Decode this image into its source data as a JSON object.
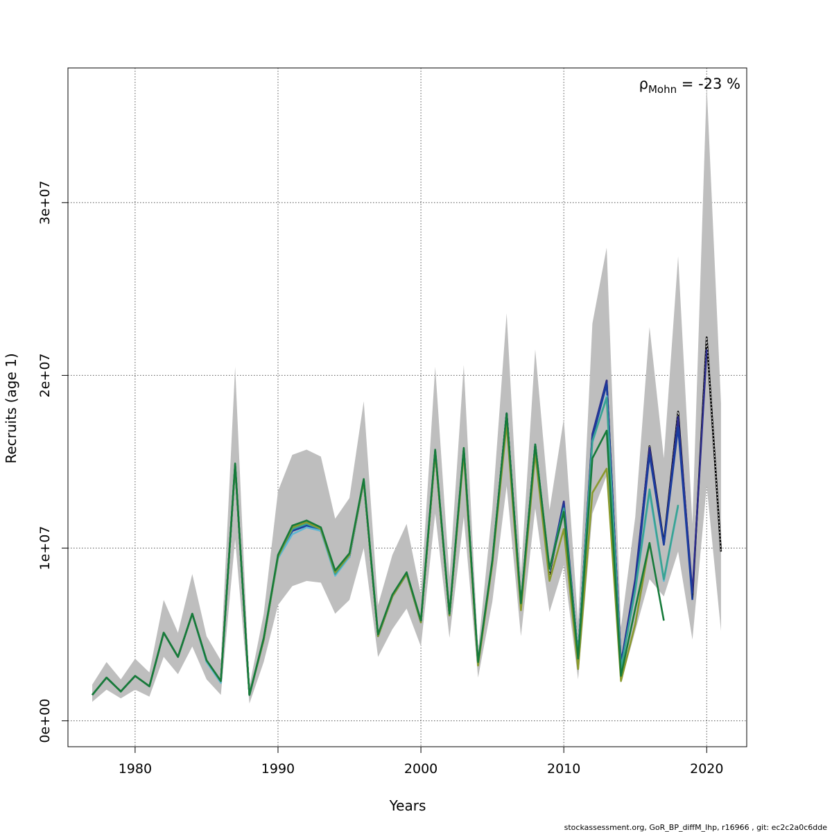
{
  "chart_data": {
    "type": "line",
    "title": "",
    "xlabel": "Years",
    "ylabel": "Recruits (age 1)",
    "xlim": [
      1975.3,
      2022.8
    ],
    "ylim": [
      -1500000,
      37800000
    ],
    "xticks": [
      1980,
      1990,
      2000,
      2010,
      2020
    ],
    "yticks": [
      0,
      10000000,
      20000000,
      30000000
    ],
    "xtick_labels": [
      "1980",
      "1990",
      "2000",
      "2010",
      "2020"
    ],
    "ytick_labels": [
      "0e+00",
      "1e+07",
      "2e+07",
      "3e+07"
    ],
    "grid": true,
    "annotation": {
      "rho": "ρ",
      "sub": "Mohn",
      "rest": " = -23 %"
    },
    "footer": "stockassessment.org, GoR_BP_diffM_lhp, r16966 , git: ec2c2a0c6dde",
    "band_color": "#bebebe",
    "years": [
      1977,
      1978,
      1979,
      1980,
      1981,
      1982,
      1983,
      1984,
      1985,
      1986,
      1987,
      1988,
      1989,
      1990,
      1991,
      1992,
      1993,
      1994,
      1995,
      1996,
      1997,
      1998,
      1999,
      2000,
      2001,
      2002,
      2003,
      2004,
      2005,
      2006,
      2007,
      2008,
      2009,
      2010,
      2011,
      2012,
      2013,
      2014,
      2015,
      2016,
      2017,
      2018,
      2019,
      2020,
      2021
    ],
    "ci_upper": [
      2100000,
      3400000,
      2400000,
      3600000,
      2800000,
      7000000,
      5100000,
      8500000,
      4900000,
      3500000,
      20500000,
      2000000,
      6200000,
      13300000,
      15400000,
      15700000,
      15300000,
      11700000,
      12900000,
      18500000,
      6700000,
      9600000,
      11400000,
      7300000,
      20500000,
      8300000,
      20600000,
      4100000,
      12300000,
      23600000,
      8500000,
      21500000,
      12200000,
      17500000,
      5700000,
      23000000,
      27400000,
      5400000,
      11800000,
      22800000,
      15200000,
      26900000,
      11400000,
      36800000,
      18400000
    ],
    "ci_lower": [
      1100000,
      1800000,
      1300000,
      1800000,
      1400000,
      3700000,
      2700000,
      4300000,
      2400000,
      1500000,
      10500000,
      1000000,
      3400000,
      6700000,
      7800000,
      8100000,
      8000000,
      6200000,
      7000000,
      10000000,
      3700000,
      5300000,
      6500000,
      4300000,
      12000000,
      4800000,
      11800000,
      2500000,
      6900000,
      13600000,
      4900000,
      12300000,
      6300000,
      9000000,
      2400000,
      12000000,
      14200000,
      2200000,
      5200000,
      8200000,
      7200000,
      9800000,
      4700000,
      13600000,
      5200000
    ],
    "series": [
      {
        "color": "#000000",
        "dashed": true,
        "start": 1977,
        "values": [
          1500000,
          2500000,
          1700000,
          2600000,
          2000000,
          5100000,
          3700000,
          6200000,
          3500000,
          2300000,
          14800000,
          1500000,
          4700000,
          9500000,
          11000000,
          11300000,
          11000000,
          8500000,
          9500000,
          13900000,
          4900000,
          7200000,
          8500000,
          5700000,
          15600000,
          6100000,
          15700000,
          3300000,
          9200000,
          17800000,
          6700000,
          16000000,
          8500000,
          12500000,
          3800000,
          16500000,
          19700000,
          3300000,
          8000000,
          15900000,
          10300000,
          17900000,
          7100000,
          22200000,
          9800000
        ]
      },
      {
        "color": "#2d2d8a",
        "dashed": false,
        "start": 1977,
        "values": [
          1500000,
          2500000,
          1700000,
          2600000,
          2000000,
          5100000,
          3700000,
          6200000,
          3500000,
          2300000,
          14800000,
          1500000,
          4700000,
          9500000,
          11000000,
          11300000,
          11000000,
          8500000,
          9500000,
          13900000,
          4900000,
          7200000,
          8500000,
          5700000,
          15600000,
          6100000,
          15700000,
          3300000,
          9200000,
          17800000,
          6700000,
          16000000,
          8700000,
          12700000,
          3800000,
          16600000,
          19700000,
          3300000,
          8200000,
          15800000,
          10200000,
          17600000,
          7400000,
          21500000
        ]
      },
      {
        "color": "#1a3d9e",
        "dashed": false,
        "start": 1977,
        "values": [
          1500000,
          2500000,
          1700000,
          2600000,
          2000000,
          5100000,
          3700000,
          6200000,
          3500000,
          2300000,
          14800000,
          1500000,
          4700000,
          9500000,
          11000000,
          11300000,
          11100000,
          8500000,
          9500000,
          13900000,
          4900000,
          7200000,
          8500000,
          5700000,
          15600000,
          6100000,
          15700000,
          3300000,
          9200000,
          17800000,
          6700000,
          16000000,
          8700000,
          12500000,
          3800000,
          16400000,
          19500000,
          3300000,
          7800000,
          15400000,
          10200000,
          17000000,
          7000000
        ]
      },
      {
        "color": "#5fb8d4",
        "dashed": false,
        "start": 1977,
        "values": [
          1500000,
          2500000,
          1700000,
          2600000,
          2000000,
          5100000,
          3700000,
          6200000,
          3400000,
          2200000,
          14800000,
          1500000,
          4700000,
          9400000,
          10800000,
          11200000,
          11000000,
          8400000,
          9500000,
          13900000,
          4900000,
          7200000,
          8500000,
          5700000,
          15600000,
          6100000,
          15700000,
          3300000,
          9200000,
          17700000,
          6700000,
          16000000,
          8700000,
          12200000,
          3800000,
          16100000,
          18800000,
          3000000,
          7500000,
          13200000,
          8100000,
          12400000
        ]
      },
      {
        "color": "#3aa392",
        "dashed": false,
        "start": 1977,
        "values": [
          1500000,
          2500000,
          1700000,
          2600000,
          2000000,
          5100000,
          3700000,
          6200000,
          3500000,
          2300000,
          14800000,
          1500000,
          4700000,
          9500000,
          11100000,
          11400000,
          11100000,
          8500000,
          9600000,
          13900000,
          4900000,
          7200000,
          8500000,
          5700000,
          15600000,
          6100000,
          15700000,
          3300000,
          9200000,
          17700000,
          6700000,
          16000000,
          8800000,
          12300000,
          3800000,
          16200000,
          18700000,
          3000000,
          7600000,
          13400000,
          8200000,
          12500000
        ]
      },
      {
        "color": "#167a3a",
        "dashed": false,
        "start": 1977,
        "values": [
          1500000,
          2500000,
          1700000,
          2600000,
          2000000,
          5100000,
          3700000,
          6200000,
          3500000,
          2300000,
          14900000,
          1500000,
          4800000,
          9600000,
          11300000,
          11600000,
          11200000,
          8700000,
          9700000,
          14000000,
          5000000,
          7300000,
          8600000,
          5800000,
          15700000,
          6200000,
          15800000,
          3400000,
          9300000,
          17800000,
          6800000,
          16000000,
          8800000,
          12100000,
          3600000,
          15200000,
          16800000,
          2600000,
          6500000,
          10300000,
          5800000
        ]
      },
      {
        "color": "#8a9a2e",
        "dashed": false,
        "start": 1977,
        "values": [
          1500000,
          2500000,
          1700000,
          2600000,
          2000000,
          5100000,
          3700000,
          6200000,
          3500000,
          2300000,
          14800000,
          1500000,
          4700000,
          9500000,
          11200000,
          11500000,
          11100000,
          8600000,
          9600000,
          13900000,
          4900000,
          7200000,
          8500000,
          5700000,
          15500000,
          6100000,
          15500000,
          3200000,
          9100000,
          17200000,
          6400000,
          15500000,
          8100000,
          11100000,
          3000000,
          13200000,
          14600000,
          2300000,
          5600000,
          10300000
        ]
      }
    ]
  }
}
